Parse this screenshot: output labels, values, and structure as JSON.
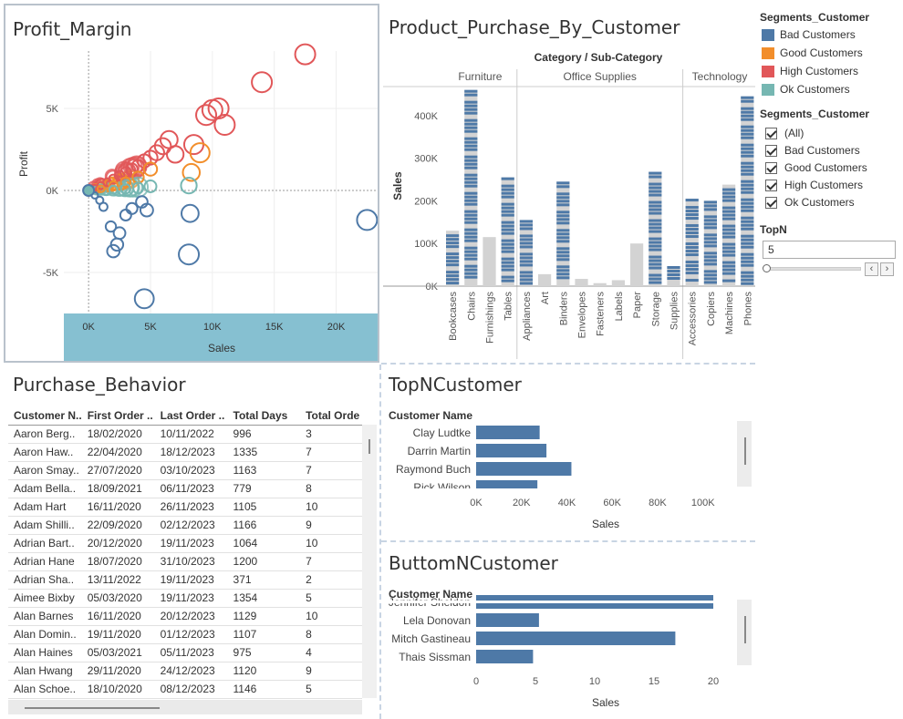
{
  "profit_margin": {
    "title": "Profit_Margin",
    "xlabel": "Sales",
    "ylabel": "Profit",
    "x_ticks": [
      "0K",
      "5K",
      "10K",
      "15K",
      "20K"
    ],
    "y_ticks": [
      "5K",
      "0K",
      "-5K"
    ]
  },
  "product_purchase": {
    "title": "Product_Purchase_By_Customer",
    "header": "Category / Sub-Category",
    "categories": [
      "Furniture",
      "Office Supplies",
      "Technology"
    ],
    "ylabel": "Sales",
    "y_ticks": [
      "400K",
      "300K",
      "200K",
      "100K",
      "0K"
    ]
  },
  "legend": {
    "title": "Segments_Customer",
    "items": [
      {
        "label": "Bad Customers",
        "color": "#4e79a7"
      },
      {
        "label": "Good Customers",
        "color": "#f28e2b"
      },
      {
        "label": "High Customers",
        "color": "#e15759"
      },
      {
        "label": "Ok Customers",
        "color": "#76b7b2"
      }
    ]
  },
  "filter": {
    "title": "Segments_Customer",
    "options": [
      "(All)",
      "Bad Customers",
      "Good Customers",
      "High Customers",
      "Ok Customers"
    ]
  },
  "topn": {
    "title": "TopN",
    "value": "5"
  },
  "purchase_behavior": {
    "title": "Purchase_Behavior",
    "columns": [
      "Customer N..",
      "First Order ..",
      "Last Order ..",
      "Total Days",
      "Total Orde"
    ],
    "rows": [
      [
        "Aaron Berg..",
        "18/02/2020",
        "10/11/2022",
        "996",
        "3"
      ],
      [
        "Aaron Haw..",
        "22/04/2020",
        "18/12/2023",
        "1335",
        "7"
      ],
      [
        "Aaron Smay..",
        "27/07/2020",
        "03/10/2023",
        "1163",
        "7"
      ],
      [
        "Adam Bella..",
        "18/09/2021",
        "06/11/2023",
        "779",
        "8"
      ],
      [
        "Adam Hart",
        "16/11/2020",
        "26/11/2023",
        "1105",
        "10"
      ],
      [
        "Adam Shilli..",
        "22/09/2020",
        "02/12/2023",
        "1166",
        "9"
      ],
      [
        "Adrian Bart..",
        "20/12/2020",
        "19/11/2023",
        "1064",
        "10"
      ],
      [
        "Adrian Hane",
        "18/07/2020",
        "31/10/2023",
        "1200",
        "7"
      ],
      [
        "Adrian Sha..",
        "13/11/2022",
        "19/11/2023",
        "371",
        "2"
      ],
      [
        "Aimee Bixby",
        "05/03/2020",
        "19/11/2023",
        "1354",
        "5"
      ],
      [
        "Alan Barnes",
        "16/11/2020",
        "20/12/2023",
        "1129",
        "10"
      ],
      [
        "Alan Domin..",
        "19/11/2020",
        "01/12/2023",
        "1107",
        "8"
      ],
      [
        "Alan Haines",
        "05/03/2021",
        "05/11/2023",
        "975",
        "4"
      ],
      [
        "Alan Hwang",
        "29/11/2020",
        "24/12/2023",
        "1120",
        "9"
      ],
      [
        "Alan Schoe..",
        "18/10/2020",
        "08/12/2023",
        "1146",
        "5"
      ]
    ]
  },
  "topn_customer": {
    "title": "TopNCustomer",
    "col_header": "Customer Name",
    "xlabel": "Sales",
    "x_ticks": [
      "0K",
      "20K",
      "40K",
      "60K",
      "80K",
      "100K"
    ]
  },
  "bottomn_customer": {
    "title": "ButtomNCustomer",
    "col_header": "Customer Name",
    "xlabel": "Sales",
    "x_ticks": [
      "0",
      "5",
      "10",
      "15",
      "20"
    ]
  },
  "chart_data": [
    {
      "type": "scatter",
      "title": "Profit_Margin",
      "xlabel": "Sales",
      "ylabel": "Profit",
      "xlim": [
        -2000,
        23500
      ],
      "ylim": [
        -7500,
        8500
      ],
      "x_ticks": [
        0,
        5000,
        10000,
        15000,
        20000
      ],
      "y_ticks": [
        -5000,
        0,
        5000
      ],
      "series": [
        {
          "name": "High Customers",
          "color": "#e15759",
          "points": [
            [
              17500,
              8300
            ],
            [
              14000,
              6600
            ],
            [
              10500,
              5000
            ],
            [
              10000,
              4900
            ],
            [
              9500,
              4600
            ],
            [
              11000,
              4000
            ],
            [
              6500,
              3100
            ],
            [
              8500,
              2800
            ],
            [
              7000,
              2200
            ],
            [
              6000,
              2700
            ],
            [
              5500,
              2300
            ],
            [
              5000,
              2000
            ],
            [
              4500,
              1800
            ],
            [
              4000,
              1500
            ],
            [
              3500,
              1300
            ],
            [
              3000,
              1100
            ],
            [
              2500,
              900
            ],
            [
              2000,
              700
            ],
            [
              1500,
              500
            ],
            [
              1000,
              300
            ],
            [
              500,
              150
            ],
            [
              0,
              0
            ]
          ]
        },
        {
          "name": "Good Customers",
          "color": "#f28e2b",
          "points": [
            [
              9000,
              2300
            ],
            [
              8300,
              1100
            ],
            [
              5000,
              1300
            ],
            [
              4000,
              800
            ],
            [
              3000,
              500
            ],
            [
              2000,
              300
            ],
            [
              1000,
              100
            ]
          ]
        },
        {
          "name": "Ok Customers",
          "color": "#76b7b2",
          "points": [
            [
              8100,
              300
            ],
            [
              5000,
              250
            ],
            [
              4000,
              150
            ],
            [
              3000,
              100
            ],
            [
              2000,
              50
            ],
            [
              0,
              0
            ]
          ]
        },
        {
          "name": "Bad Customers",
          "color": "#4e79a7",
          "points": [
            [
              22500,
              -1800
            ],
            [
              8200,
              -1400
            ],
            [
              8100,
              -3900
            ],
            [
              4700,
              -1200
            ],
            [
              4300,
              -700
            ],
            [
              3500,
              -1100
            ],
            [
              3000,
              -1500
            ],
            [
              2500,
              -2600
            ],
            [
              2300,
              -3300
            ],
            [
              2000,
              -3700
            ],
            [
              1800,
              -2200
            ],
            [
              1200,
              -1000
            ],
            [
              900,
              -600
            ],
            [
              500,
              -300
            ],
            [
              4500,
              -6600
            ],
            [
              0,
              0
            ]
          ]
        }
      ]
    },
    {
      "type": "bar",
      "title": "Product_Purchase_By_Customer",
      "ylabel": "Sales",
      "ylim": [
        0,
        470000
      ],
      "categories": [
        "Bookcases",
        "Chairs",
        "Furnishings",
        "Tables",
        "Appliances",
        "Art",
        "Binders",
        "Envelopes",
        "Fasteners",
        "Labels",
        "Paper",
        "Storage",
        "Supplies",
        "Accessories",
        "Copiers",
        "Machines",
        "Phones"
      ],
      "groups": [
        {
          "name": "Furniture",
          "count": 4
        },
        {
          "name": "Office Supplies",
          "count": 9
        },
        {
          "name": "Technology",
          "count": 4
        }
      ],
      "values": [
        130000,
        460000,
        115000,
        255000,
        155000,
        28000,
        245000,
        17000,
        7000,
        14000,
        100000,
        268000,
        47000,
        205000,
        200000,
        238000,
        445000
      ],
      "highlighted": [
        true,
        true,
        false,
        true,
        true,
        false,
        true,
        false,
        true,
        false,
        false,
        true,
        true,
        true,
        true,
        true,
        true
      ]
    },
    {
      "type": "bar",
      "title": "TopNCustomer",
      "orientation": "horizontal",
      "xlabel": "Sales",
      "xlim": [
        0,
        115000
      ],
      "categories": [
        "Clay Ludtke",
        "Darrin Martin",
        "Raymond Buch",
        "Rick Wilson"
      ],
      "values": [
        28000,
        31000,
        42000,
        27000
      ]
    },
    {
      "type": "bar",
      "title": "ButtomNCustomer",
      "orientation": "horizontal",
      "xlabel": "Sales",
      "xlim": [
        0,
        22
      ],
      "categories": [
        "Jennifer Sheldon",
        "Lela Donovan",
        "Mitch Gastineau",
        "Thais Sissman"
      ],
      "values": [
        20,
        5.3,
        16.8,
        4.8
      ]
    }
  ]
}
